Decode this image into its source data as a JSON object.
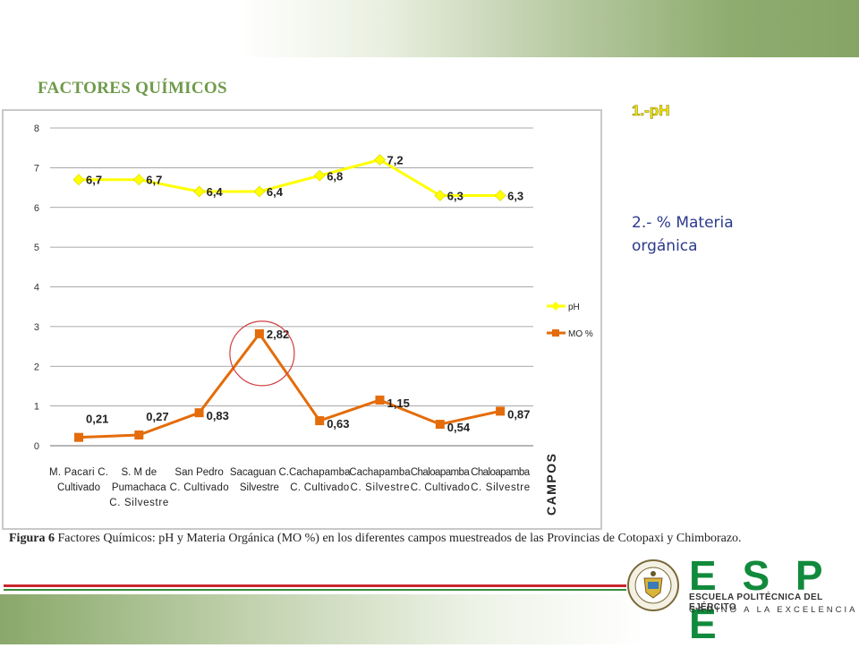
{
  "slide": {
    "title": "FACTORES QUÍMICOS",
    "side_item_1": "1.-pH",
    "side_item_2": "2.- % Materia orgánica",
    "caption_label": "Figura 6",
    "caption_text": " Factores Químicos: pH y Materia Orgánica (MO %) en los diferentes campos muestreados de las Provincias de Cotopaxi y Chimborazo."
  },
  "logo": {
    "letters": "E S P E",
    "name": "ESCUELA POLITÉCNICA DEL EJÉRCITO",
    "motto": "CAMINO A LA EXCELENCIA",
    "seal_text": "ESCUELA POLITÉCNICA DEL EJÉRCITO"
  },
  "colors": {
    "title_green": "#6f9a4b",
    "ph_series": "#ffff00",
    "mo_series": "#e46c0a",
    "logo_green": "#128a3c",
    "rule_red": "#c8262e"
  },
  "chart_data": {
    "type": "line",
    "categories": [
      [
        "M. Pacari C.",
        "Cultivado"
      ],
      [
        "S. M de",
        "Pumachaca",
        "C. Silvestre"
      ],
      [
        "San Pedro",
        "C. Cultivado"
      ],
      [
        "Sacaguan C.",
        "Silvestre"
      ],
      [
        "Cachapamba",
        "C. Cultivado"
      ],
      [
        "Cachapamba",
        "C. Silvestre"
      ],
      [
        "Chaloapamba",
        "C. Cultivado"
      ],
      [
        "Chaloapamba",
        "C. Silvestre"
      ]
    ],
    "series": [
      {
        "name": "pH",
        "values": [
          6.7,
          6.7,
          6.4,
          6.4,
          6.8,
          7.2,
          6.3,
          6.3
        ],
        "labels": [
          "6,7",
          "6,7",
          "6,4",
          "6,4",
          "6,8",
          "7,2",
          "6,3",
          "6,3"
        ],
        "color": "#ffff00",
        "marker": "diamond"
      },
      {
        "name": "MO %",
        "values": [
          0.21,
          0.27,
          0.83,
          2.82,
          0.63,
          1.15,
          0.54,
          0.87
        ],
        "labels": [
          "0,21",
          "0,27",
          "0,83",
          "2,82",
          "0,63",
          "1,15",
          "0,54",
          "0,87"
        ],
        "color": "#e46c0a",
        "marker": "square"
      }
    ],
    "xlabel": "CAMPOS",
    "ylabel": "",
    "ylim": [
      0,
      8
    ],
    "yticks": [
      0,
      1,
      2,
      3,
      4,
      5,
      6,
      7,
      8
    ],
    "grid": true,
    "legend": "right",
    "highlight": "circle around MO % peak at Sacaguan C. Silvestre"
  }
}
